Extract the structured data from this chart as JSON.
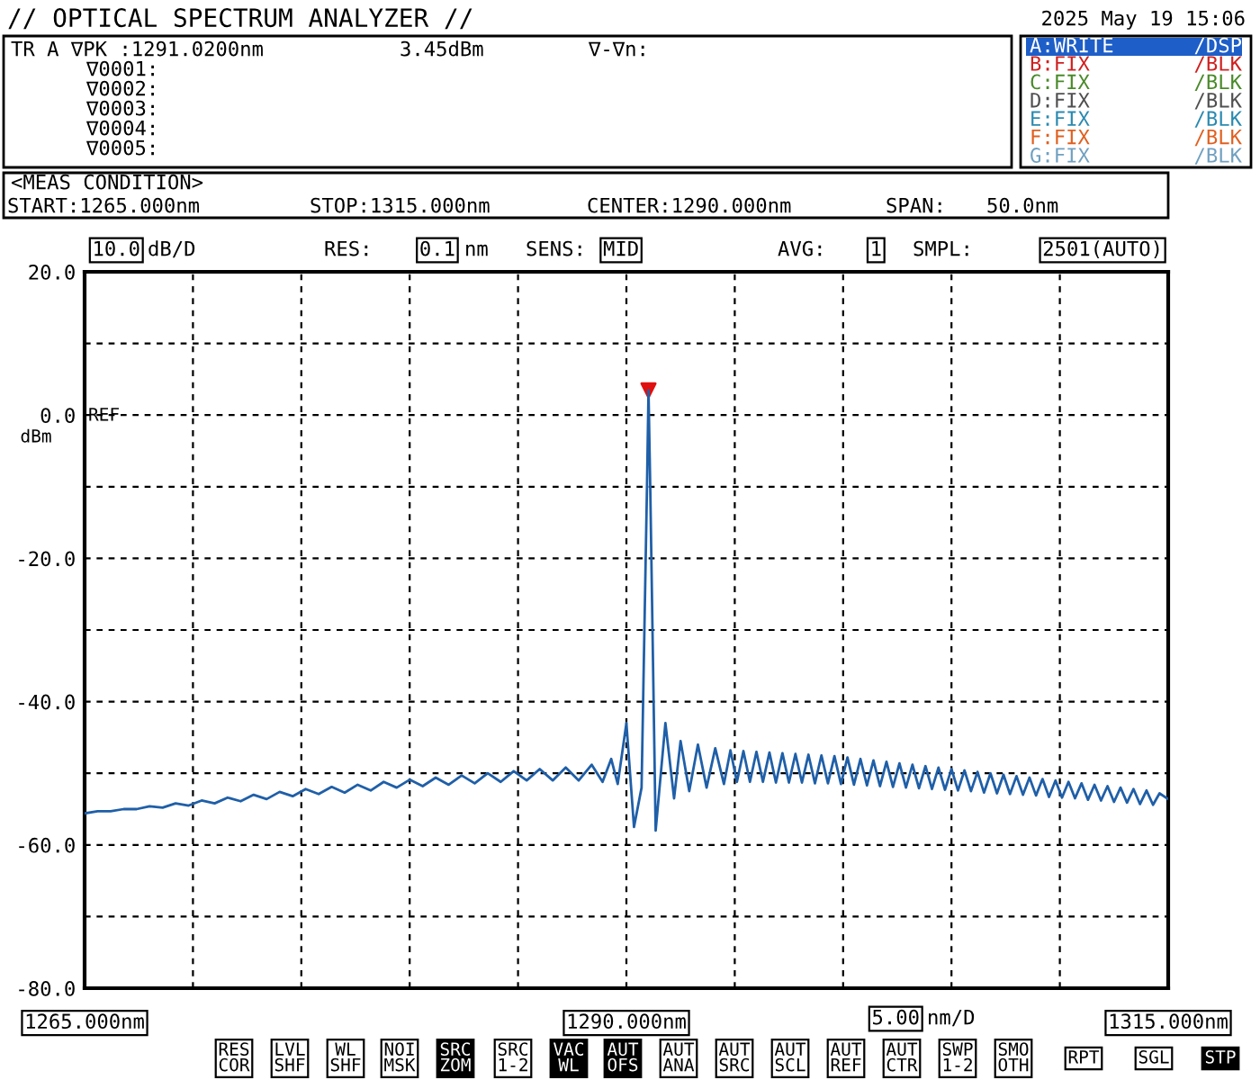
{
  "chart_data": {
    "type": "line",
    "title": "// OPTICAL SPECTRUM ANALYZER //",
    "xlim": [
      1265,
      1315
    ],
    "ylim": [
      -80,
      20
    ],
    "xticks": [
      {
        "value": 1265,
        "label": "1265.000nm"
      },
      {
        "value": 1270,
        "label": null
      },
      {
        "value": 1275,
        "label": null
      },
      {
        "value": 1280,
        "label": null
      },
      {
        "value": 1285,
        "label": null
      },
      {
        "value": 1290,
        "label": "1290.000nm"
      },
      {
        "value": 1295,
        "label": null
      },
      {
        "value": 1300,
        "label": null
      },
      {
        "value": 1305,
        "label": null
      },
      {
        "value": 1310,
        "label": null
      },
      {
        "value": 1315,
        "label": "1315.000nm"
      }
    ],
    "yticks": [
      {
        "value": 20,
        "label": "20.0"
      },
      {
        "value": 10,
        "label": null
      },
      {
        "value": 0,
        "label": "0.0"
      },
      {
        "value": -10,
        "label": null
      },
      {
        "value": -20,
        "label": "-20.0"
      },
      {
        "value": -30,
        "label": null
      },
      {
        "value": -40,
        "label": "-40.0"
      },
      {
        "value": -50,
        "label": null
      },
      {
        "value": -60,
        "label": "-60.0"
      },
      {
        "value": -70,
        "label": null
      },
      {
        "value": -80,
        "label": "-80.0"
      }
    ],
    "grid": true,
    "line_style": "solid",
    "series": [
      {
        "color": "#1f5fa8",
        "marker": "none",
        "x": [
          1265.0,
          1265.6,
          1266.2,
          1266.8,
          1267.4,
          1268.0,
          1268.6,
          1269.2,
          1269.8,
          1270.4,
          1271.0,
          1271.6,
          1272.2,
          1272.8,
          1273.4,
          1274.0,
          1274.6,
          1275.2,
          1275.8,
          1276.4,
          1277.0,
          1277.6,
          1278.2,
          1278.8,
          1279.4,
          1280.0,
          1280.6,
          1281.2,
          1281.8,
          1282.4,
          1283.0,
          1283.6,
          1284.2,
          1284.8,
          1285.4,
          1286.0,
          1286.6,
          1287.2,
          1287.8,
          1288.4,
          1288.9,
          1289.3,
          1289.6,
          1290.0,
          1290.35,
          1290.7,
          1290.95,
          1291.02,
          1291.1,
          1291.35,
          1291.8,
          1292.2,
          1292.5,
          1292.9,
          1293.3,
          1293.7,
          1294.1,
          1294.5,
          1294.8,
          1295.1,
          1295.4,
          1295.7,
          1296.0,
          1296.3,
          1296.6,
          1296.9,
          1297.2,
          1297.5,
          1297.8,
          1298.1,
          1298.4,
          1298.7,
          1299.0,
          1299.3,
          1299.6,
          1299.9,
          1300.2,
          1300.5,
          1300.8,
          1301.1,
          1301.4,
          1301.7,
          1302.0,
          1302.3,
          1302.6,
          1302.9,
          1303.2,
          1303.5,
          1303.8,
          1304.1,
          1304.4,
          1304.7,
          1305.0,
          1305.3,
          1305.6,
          1305.9,
          1306.2,
          1306.5,
          1306.8,
          1307.1,
          1307.4,
          1307.7,
          1308.0,
          1308.3,
          1308.6,
          1308.9,
          1309.2,
          1309.5,
          1309.8,
          1310.1,
          1310.4,
          1310.7,
          1311.0,
          1311.3,
          1311.6,
          1311.9,
          1312.2,
          1312.5,
          1312.8,
          1313.1,
          1313.4,
          1313.7,
          1314.0,
          1314.3,
          1314.6,
          1315.0
        ],
        "values": [
          -55.6,
          -55.3,
          -55.3,
          -55.0,
          -55.0,
          -54.6,
          -54.8,
          -54.2,
          -54.5,
          -53.8,
          -54.2,
          -53.4,
          -53.9,
          -53.0,
          -53.6,
          -52.6,
          -53.2,
          -52.2,
          -52.9,
          -51.9,
          -52.7,
          -51.6,
          -52.4,
          -51.2,
          -52.0,
          -50.9,
          -51.8,
          -50.6,
          -51.6,
          -50.3,
          -51.4,
          -50.0,
          -51.2,
          -49.7,
          -51.0,
          -49.4,
          -51.0,
          -49.2,
          -51.0,
          -48.8,
          -51.2,
          -48.0,
          -51.5,
          -43.0,
          -57.5,
          -52.0,
          -10.0,
          3.45,
          -10.0,
          -58.0,
          -43.0,
          -53.5,
          -45.5,
          -52.5,
          -46.0,
          -52.0,
          -46.5,
          -51.5,
          -46.8,
          -51.2,
          -46.9,
          -51.2,
          -47.0,
          -51.2,
          -47.1,
          -51.3,
          -47.2,
          -51.3,
          -47.3,
          -51.3,
          -47.4,
          -51.4,
          -47.5,
          -51.4,
          -47.6,
          -51.5,
          -47.8,
          -51.6,
          -48.0,
          -51.7,
          -48.2,
          -51.8,
          -48.4,
          -51.9,
          -48.6,
          -52.0,
          -48.8,
          -52.1,
          -49.0,
          -52.2,
          -49.2,
          -52.3,
          -49.4,
          -52.4,
          -49.6,
          -52.5,
          -49.8,
          -52.7,
          -50.0,
          -52.8,
          -50.2,
          -52.9,
          -50.4,
          -53.0,
          -50.6,
          -53.1,
          -50.8,
          -53.3,
          -51.0,
          -53.4,
          -51.2,
          -53.5,
          -51.4,
          -53.7,
          -51.6,
          -53.8,
          -51.8,
          -54.0,
          -52.0,
          -54.1,
          -52.2,
          -54.3,
          -52.4,
          -54.4,
          -52.8,
          -53.6
        ]
      },
      {
        "type": "scatter",
        "color": "#e01010",
        "marker": "triangle",
        "x": [
          1291.02
        ],
        "values": [
          3.45
        ]
      }
    ],
    "annotations": [
      "2025 May 19 15:06",
      "TR A ∇PK :1291.0200nm",
      "3.45dBm",
      "∇-∇n:",
      "∇0001:",
      "∇0002:",
      "∇0003:",
      "∇0004:",
      "∇0005:",
      "A:WRITE",
      "/DSP",
      "B:FIX",
      "/BLK",
      "C:FIX",
      "/BLK",
      "D:FIX",
      "/BLK",
      "E:FIX",
      "/BLK",
      "F:FIX",
      "/BLK",
      "G:FIX",
      "/BLK",
      "<MEAS CONDITION>",
      "START:1265.000nm",
      "STOP:1315.000nm",
      "CENTER:1290.000nm",
      "SPAN:",
      "50.0nm",
      "10.0",
      "dB/D",
      "RES:",
      "0.1",
      "nm",
      "SENS:",
      "MID",
      "AVG:",
      "1",
      "SMPL:",
      "2501(AUTO)",
      "REF",
      "dBm",
      "5.00",
      "nm/D",
      "RES\nCOR",
      "LVL\nSHF",
      "WL\nSHF",
      "NOI\nMSK",
      "SRC\nZOM",
      "SRC\n1-2",
      "VAC\nWL",
      "AUT\nOFS",
      "AUT\nANA",
      "AUT\nSRC",
      "AUT\nSCL",
      "AUT\nREF",
      "AUT\nCTR",
      "SWP\n1-2",
      "SMO\nOTH",
      "RPT",
      "SGL",
      "STP"
    ]
  }
}
